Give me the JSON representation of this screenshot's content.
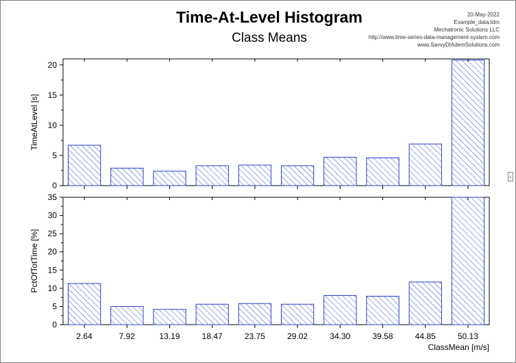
{
  "header": {
    "title": "Time-At-Level Histogram",
    "subtitle": "Class Means",
    "meta_lines": [
      "20-May-2022",
      "Example_data.tdm",
      "Mechatronic Solutions LLC",
      "http://www.time-series-data-management-system.com",
      "www.SavvyDIAdemSolutions.com"
    ]
  },
  "side_handle_label": "-",
  "colors": {
    "bar_edge": "#2b3fc9",
    "bar_hatch": "#3349d8",
    "axis": "#000000",
    "grid_line": "#000000"
  },
  "chart_data": [
    {
      "type": "bar",
      "title": "",
      "xlabel": "",
      "ylabel": "TimeAtLevel [s]",
      "ylim": [
        0,
        21
      ],
      "yticks": [
        0,
        5,
        10,
        15,
        20
      ],
      "categories": [
        "2.64",
        "7.92",
        "13.19",
        "18.47",
        "23.75",
        "29.02",
        "34.30",
        "39.58",
        "44.85",
        "50.13"
      ],
      "values": [
        6.7,
        2.9,
        2.4,
        3.3,
        3.4,
        3.3,
        4.7,
        4.6,
        6.9,
        20.8
      ],
      "fill": "diagonal-hatch"
    },
    {
      "type": "bar",
      "title": "",
      "xlabel": "ClassMean [m/s]",
      "ylabel": "PctOfTotTime [%]",
      "ylim": [
        0,
        35
      ],
      "yticks": [
        0,
        5,
        10,
        15,
        20,
        25,
        30,
        35
      ],
      "categories": [
        "2.64",
        "7.92",
        "13.19",
        "18.47",
        "23.75",
        "29.02",
        "34.30",
        "39.58",
        "44.85",
        "50.13"
      ],
      "values": [
        11.3,
        5.0,
        4.2,
        5.6,
        5.8,
        5.6,
        8.0,
        7.8,
        11.7,
        35.0
      ],
      "fill": "diagonal-hatch"
    }
  ]
}
